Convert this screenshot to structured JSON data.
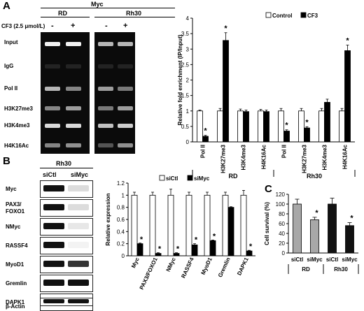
{
  "panelA": {
    "letter": "A",
    "myc_header": "Myc",
    "cell_rd": "RD",
    "cell_rh30": "Rh30",
    "treatment_label": "CF3 (2.5 μmol/L)",
    "treatment_signs": [
      "-",
      "+",
      "-",
      "+"
    ],
    "gel_rows": [
      "Input",
      "IgG",
      "Pol II",
      "H3K27me3",
      "H3K4me3",
      "H4K16Ac"
    ]
  },
  "panelB": {
    "letter": "B",
    "cell_line": "Rh30",
    "lanes": [
      "siCtl",
      "siMyc"
    ],
    "proteins": [
      "Myc",
      "PAX3/\nFOXO1",
      "NMyc",
      "RASSF4",
      "MyoD1",
      "Gremlin",
      "DAPK1",
      "β-Actin"
    ],
    "band_levels_siMyc": [
      0.15,
      0.15,
      0.1,
      0.05,
      0.85,
      1.0,
      0.15,
      1.0
    ]
  },
  "panelC": {
    "letter": "C"
  },
  "chart_data": [
    {
      "type": "bar",
      "id": "chip",
      "ylabel": "Relative fold enrichment (IP/Input)",
      "ylim": [
        0,
        4
      ],
      "yticks": [
        "0",
        "0.5",
        "1",
        "1.5",
        "2",
        "2.5",
        "3",
        "3.5",
        "4"
      ],
      "categories": [
        "Pol II",
        "H3K27me3",
        "H3K4me3",
        "H4K16Ac",
        "Pol II",
        "H3K27me3",
        "H3K4me3",
        "H4K16Ac"
      ],
      "groups": [
        "RD",
        "Rh30"
      ],
      "series": [
        {
          "name": "Control",
          "color": "#ffffff",
          "values": [
            1,
            1,
            1,
            1,
            1,
            1,
            1,
            1
          ],
          "errors": [
            0.03,
            0.08,
            0.06,
            0.05,
            0.08,
            0.08,
            0.08,
            0.08
          ]
        },
        {
          "name": "CF3",
          "color": "#000000",
          "values": [
            0.18,
            3.28,
            0.98,
            0.98,
            0.35,
            0.45,
            1.28,
            2.95
          ],
          "errors": [
            0.03,
            0.25,
            0.05,
            0.05,
            0.04,
            0.04,
            0.1,
            0.18
          ]
        }
      ],
      "significance": [
        "*",
        "*",
        "",
        "",
        "*",
        "*",
        "",
        "*"
      ],
      "legend_position": "top-right"
    },
    {
      "type": "bar",
      "id": "expr",
      "ylabel": "Relative expression",
      "ylim": [
        0,
        1.2
      ],
      "yticks": [
        "0",
        "0.2",
        "0.4",
        "0.6",
        "0.8",
        "1",
        "1.2"
      ],
      "categories": [
        "Myc",
        "PAX3/FOXO1",
        "NMyc",
        "RASSF4",
        "MyoD1",
        "Gremlin",
        "DAPK1"
      ],
      "series": [
        {
          "name": "siCtl",
          "color": "#ffffff",
          "values": [
            1,
            1,
            1,
            1,
            1,
            1,
            1
          ],
          "errors": [
            0.05,
            0.05,
            0.1,
            0.05,
            0.05,
            0.05,
            0.08
          ]
        },
        {
          "name": "siMyc",
          "color": "#000000",
          "values": [
            0.2,
            0.04,
            0.04,
            0.18,
            0.25,
            0.8,
            0.08
          ],
          "errors": [
            0.01,
            0.01,
            0.01,
            0.02,
            0.01,
            0.01,
            0.01
          ]
        }
      ],
      "significance": [
        "*",
        "*",
        "*",
        "*",
        "*",
        "",
        "*"
      ],
      "legend_position": "top"
    },
    {
      "type": "bar",
      "id": "survival",
      "ylabel": "Cell survival (%)",
      "ylim": [
        0,
        120
      ],
      "yticks": [
        "0",
        "20",
        "40",
        "60",
        "80",
        "100",
        "120"
      ],
      "categories": [
        "siCtl",
        "siMyc",
        "siCtl",
        "siMyc"
      ],
      "groups": [
        "RD",
        "Rh30"
      ],
      "values": [
        100,
        68,
        100,
        56
      ],
      "errors": [
        10,
        5,
        12,
        6
      ],
      "colors": [
        "#a8a8a8",
        "#a8a8a8",
        "#111111",
        "#111111"
      ],
      "significance": [
        "",
        "*",
        "",
        "*"
      ]
    }
  ]
}
